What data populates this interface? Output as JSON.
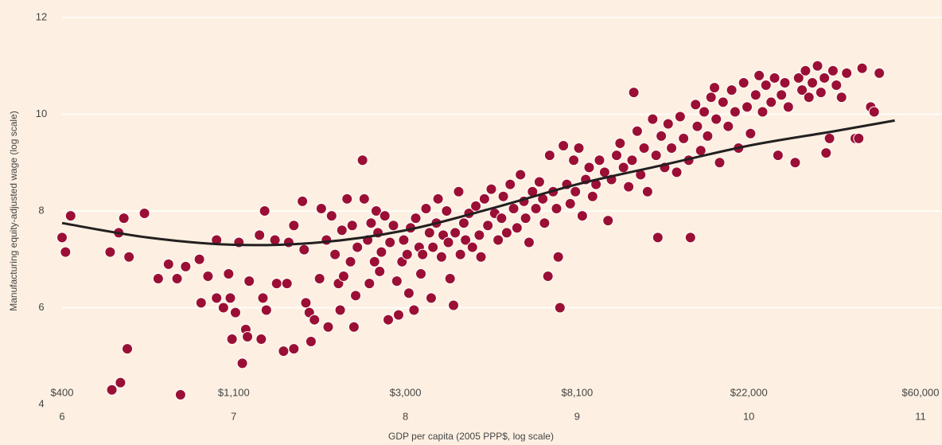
{
  "chart_data": {
    "type": "scatter",
    "xlabel": "GDP per capita (2005 PPP$, log scale)",
    "ylabel": "Manufacturing equity-adjusted wage (log scale)",
    "xlim": [
      6,
      11
    ],
    "ylim": [
      4,
      12
    ],
    "xticks": [
      6,
      7,
      8,
      9,
      10,
      11
    ],
    "yticks": [
      4,
      6,
      8,
      10,
      12
    ],
    "x2ticks": [
      {
        "value": 6,
        "label": "$400"
      },
      {
        "value": 7,
        "label": "$1,100"
      },
      {
        "value": 8,
        "label": "$3,000"
      },
      {
        "value": 9,
        "label": "$8,100"
      },
      {
        "value": 10,
        "label": "$22,000"
      },
      {
        "value": 11,
        "label": "$60,000"
      }
    ],
    "grid": true,
    "color": "#9b0f35",
    "x": [
      6.0,
      6.02,
      6.05,
      6.29,
      6.34,
      6.38,
      6.33,
      6.36,
      6.28,
      6.39,
      6.48,
      6.56,
      6.62,
      6.67,
      6.69,
      6.72,
      6.8,
      6.81,
      6.85,
      6.9,
      6.9,
      6.94,
      6.97,
      6.98,
      6.99,
      7.01,
      7.03,
      7.05,
      7.07,
      7.09,
      7.08,
      7.16,
      7.17,
      7.18,
      7.19,
      7.15,
      7.24,
      7.25,
      7.29,
      7.31,
      7.32,
      7.35,
      7.35,
      7.4,
      7.41,
      7.42,
      7.44,
      7.45,
      7.47,
      7.5,
      7.51,
      7.54,
      7.55,
      7.57,
      7.59,
      7.61,
      7.62,
      7.63,
      7.64,
      7.66,
      7.68,
      7.69,
      7.7,
      7.71,
      7.72,
      7.75,
      7.76,
      7.78,
      7.79,
      7.8,
      7.82,
      7.83,
      7.84,
      7.85,
      7.86,
      7.88,
      7.9,
      7.91,
      7.93,
      7.95,
      7.96,
      7.98,
      7.99,
      8.01,
      8.02,
      8.03,
      8.05,
      8.06,
      8.08,
      8.09,
      8.1,
      8.12,
      8.14,
      8.15,
      8.16,
      8.18,
      8.19,
      8.21,
      8.22,
      8.24,
      8.25,
      8.26,
      8.28,
      8.29,
      8.31,
      8.32,
      8.34,
      8.35,
      8.37,
      8.39,
      8.41,
      8.43,
      8.44,
      8.46,
      8.48,
      8.5,
      8.52,
      8.54,
      8.56,
      8.57,
      8.59,
      8.61,
      8.63,
      8.65,
      8.67,
      8.69,
      8.7,
      8.72,
      8.74,
      8.76,
      8.78,
      8.8,
      8.81,
      8.83,
      8.84,
      8.86,
      8.88,
      8.89,
      8.9,
      8.92,
      8.94,
      8.96,
      8.98,
      8.99,
      9.01,
      9.03,
      9.05,
      9.07,
      9.09,
      9.11,
      9.13,
      9.16,
      9.18,
      9.2,
      9.23,
      9.25,
      9.27,
      9.3,
      9.32,
      9.33,
      9.35,
      9.37,
      9.39,
      9.41,
      9.44,
      9.46,
      9.47,
      9.49,
      9.51,
      9.53,
      9.55,
      9.58,
      9.6,
      9.62,
      9.65,
      9.66,
      9.69,
      9.7,
      9.72,
      9.74,
      9.76,
      9.78,
      9.8,
      9.81,
      9.83,
      9.85,
      9.88,
      9.9,
      9.92,
      9.94,
      9.97,
      9.99,
      10.01,
      10.04,
      10.06,
      10.08,
      10.1,
      10.13,
      10.15,
      10.17,
      10.19,
      10.21,
      10.23,
      10.27,
      10.29,
      10.31,
      10.33,
      10.35,
      10.37,
      10.4,
      10.42,
      10.44,
      10.45,
      10.47,
      10.49,
      10.51,
      10.54,
      10.57,
      10.62,
      10.64,
      10.66,
      10.71,
      10.73,
      10.76
    ],
    "values": [
      7.45,
      7.15,
      7.9,
      4.3,
      4.45,
      5.15,
      7.55,
      7.85,
      7.15,
      7.05,
      7.95,
      6.6,
      6.9,
      6.6,
      4.2,
      6.85,
      7.0,
      6.1,
      6.65,
      7.4,
      6.2,
      6.0,
      6.7,
      6.2,
      5.35,
      5.9,
      7.35,
      4.85,
      5.55,
      6.55,
      5.4,
      5.35,
      6.2,
      8.0,
      5.95,
      7.5,
      7.4,
      6.5,
      5.1,
      6.5,
      7.35,
      5.15,
      7.7,
      8.2,
      7.2,
      6.1,
      5.9,
      5.3,
      5.75,
      6.6,
      8.05,
      7.4,
      5.6,
      7.9,
      7.1,
      6.5,
      5.95,
      7.6,
      6.65,
      8.25,
      6.95,
      7.7,
      5.6,
      6.25,
      7.25,
      9.05,
      8.25,
      7.4,
      6.5,
      7.75,
      6.95,
      8.0,
      7.55,
      6.75,
      7.15,
      7.9,
      5.75,
      7.35,
      7.7,
      6.55,
      5.85,
      6.95,
      7.4,
      7.1,
      6.3,
      7.65,
      5.95,
      7.85,
      7.25,
      6.7,
      7.1,
      8.05,
      7.55,
      6.2,
      7.25,
      7.75,
      8.25,
      7.05,
      7.5,
      8.0,
      7.35,
      6.6,
      6.05,
      7.55,
      8.4,
      7.1,
      7.75,
      7.4,
      7.95,
      7.25,
      8.1,
      7.5,
      7.05,
      8.25,
      7.7,
      8.45,
      7.95,
      7.4,
      7.85,
      8.3,
      7.55,
      8.55,
      8.05,
      7.65,
      8.75,
      8.2,
      7.85,
      7.35,
      8.4,
      8.05,
      8.6,
      8.25,
      7.75,
      6.65,
      9.15,
      8.4,
      8.05,
      7.05,
      6.0,
      9.35,
      8.55,
      8.15,
      9.05,
      8.4,
      9.3,
      7.9,
      8.65,
      8.9,
      8.3,
      8.55,
      9.05,
      8.8,
      7.8,
      8.65,
      9.15,
      9.4,
      8.9,
      8.5,
      9.05,
      10.45,
      9.65,
      8.75,
      9.3,
      8.4,
      9.9,
      9.15,
      7.45,
      9.55,
      8.9,
      9.8,
      9.3,
      8.8,
      9.95,
      9.5,
      9.05,
      7.45,
      10.2,
      9.75,
      9.25,
      10.05,
      9.55,
      10.35,
      10.55,
      9.9,
      9.0,
      10.25,
      9.75,
      10.5,
      10.05,
      9.3,
      10.65,
      10.15,
      9.6,
      10.4,
      10.8,
      10.05,
      10.6,
      10.25,
      10.75,
      9.15,
      10.4,
      10.65,
      10.15,
      9.0,
      10.75,
      10.5,
      10.9,
      10.35,
      10.65,
      11.0,
      10.45,
      10.75,
      9.2,
      9.5,
      10.9,
      10.6,
      10.35,
      10.85,
      9.5,
      9.5,
      10.95,
      10.15,
      10.05,
      10.85
    ],
    "fit_line": {
      "color": "#231f20",
      "x": [
        6.0,
        6.5,
        7.0,
        7.5,
        8.0,
        8.5,
        9.0,
        9.5,
        10.0,
        10.5,
        10.85
      ],
      "values": [
        7.75,
        7.45,
        7.3,
        7.35,
        7.6,
        8.05,
        8.55,
        8.95,
        9.35,
        9.65,
        9.87
      ]
    }
  }
}
